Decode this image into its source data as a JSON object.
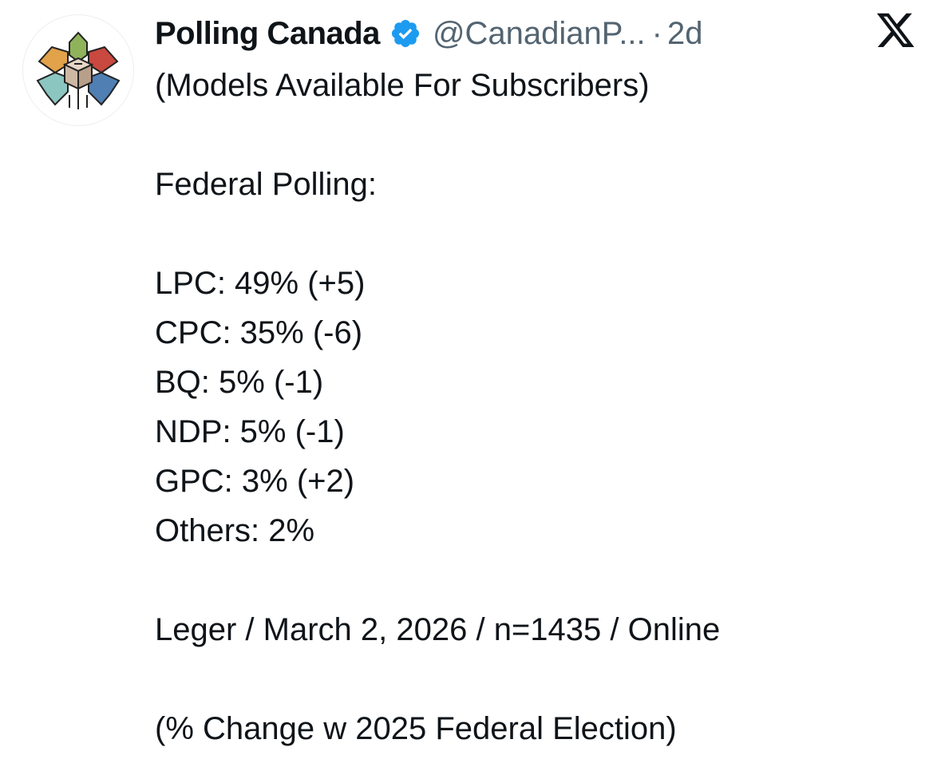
{
  "author": {
    "display_name": "Polling Canada",
    "handle": "@CanadianP...",
    "separator": "·",
    "time": "2d",
    "avatar_icon": "polling-canada-logo-icon",
    "verified_icon": "verified-badge-icon",
    "verified_color": "#1d9bf0"
  },
  "platform": {
    "logo_icon": "x-logo-icon"
  },
  "tweet": {
    "intro": "(Models Available For Subscribers)",
    "heading": "Federal Polling:",
    "results": [
      "LPC: 49% (+5)",
      "CPC: 35% (-6)",
      "BQ: 5% (-1)",
      "NDP: 5% (-1)",
      "GPC: 3% (+2)",
      "Others: 2%"
    ],
    "source": "Leger / March 2, 2026 / n=1435 / Online",
    "note": "(% Change w 2025 Federal Election)"
  }
}
